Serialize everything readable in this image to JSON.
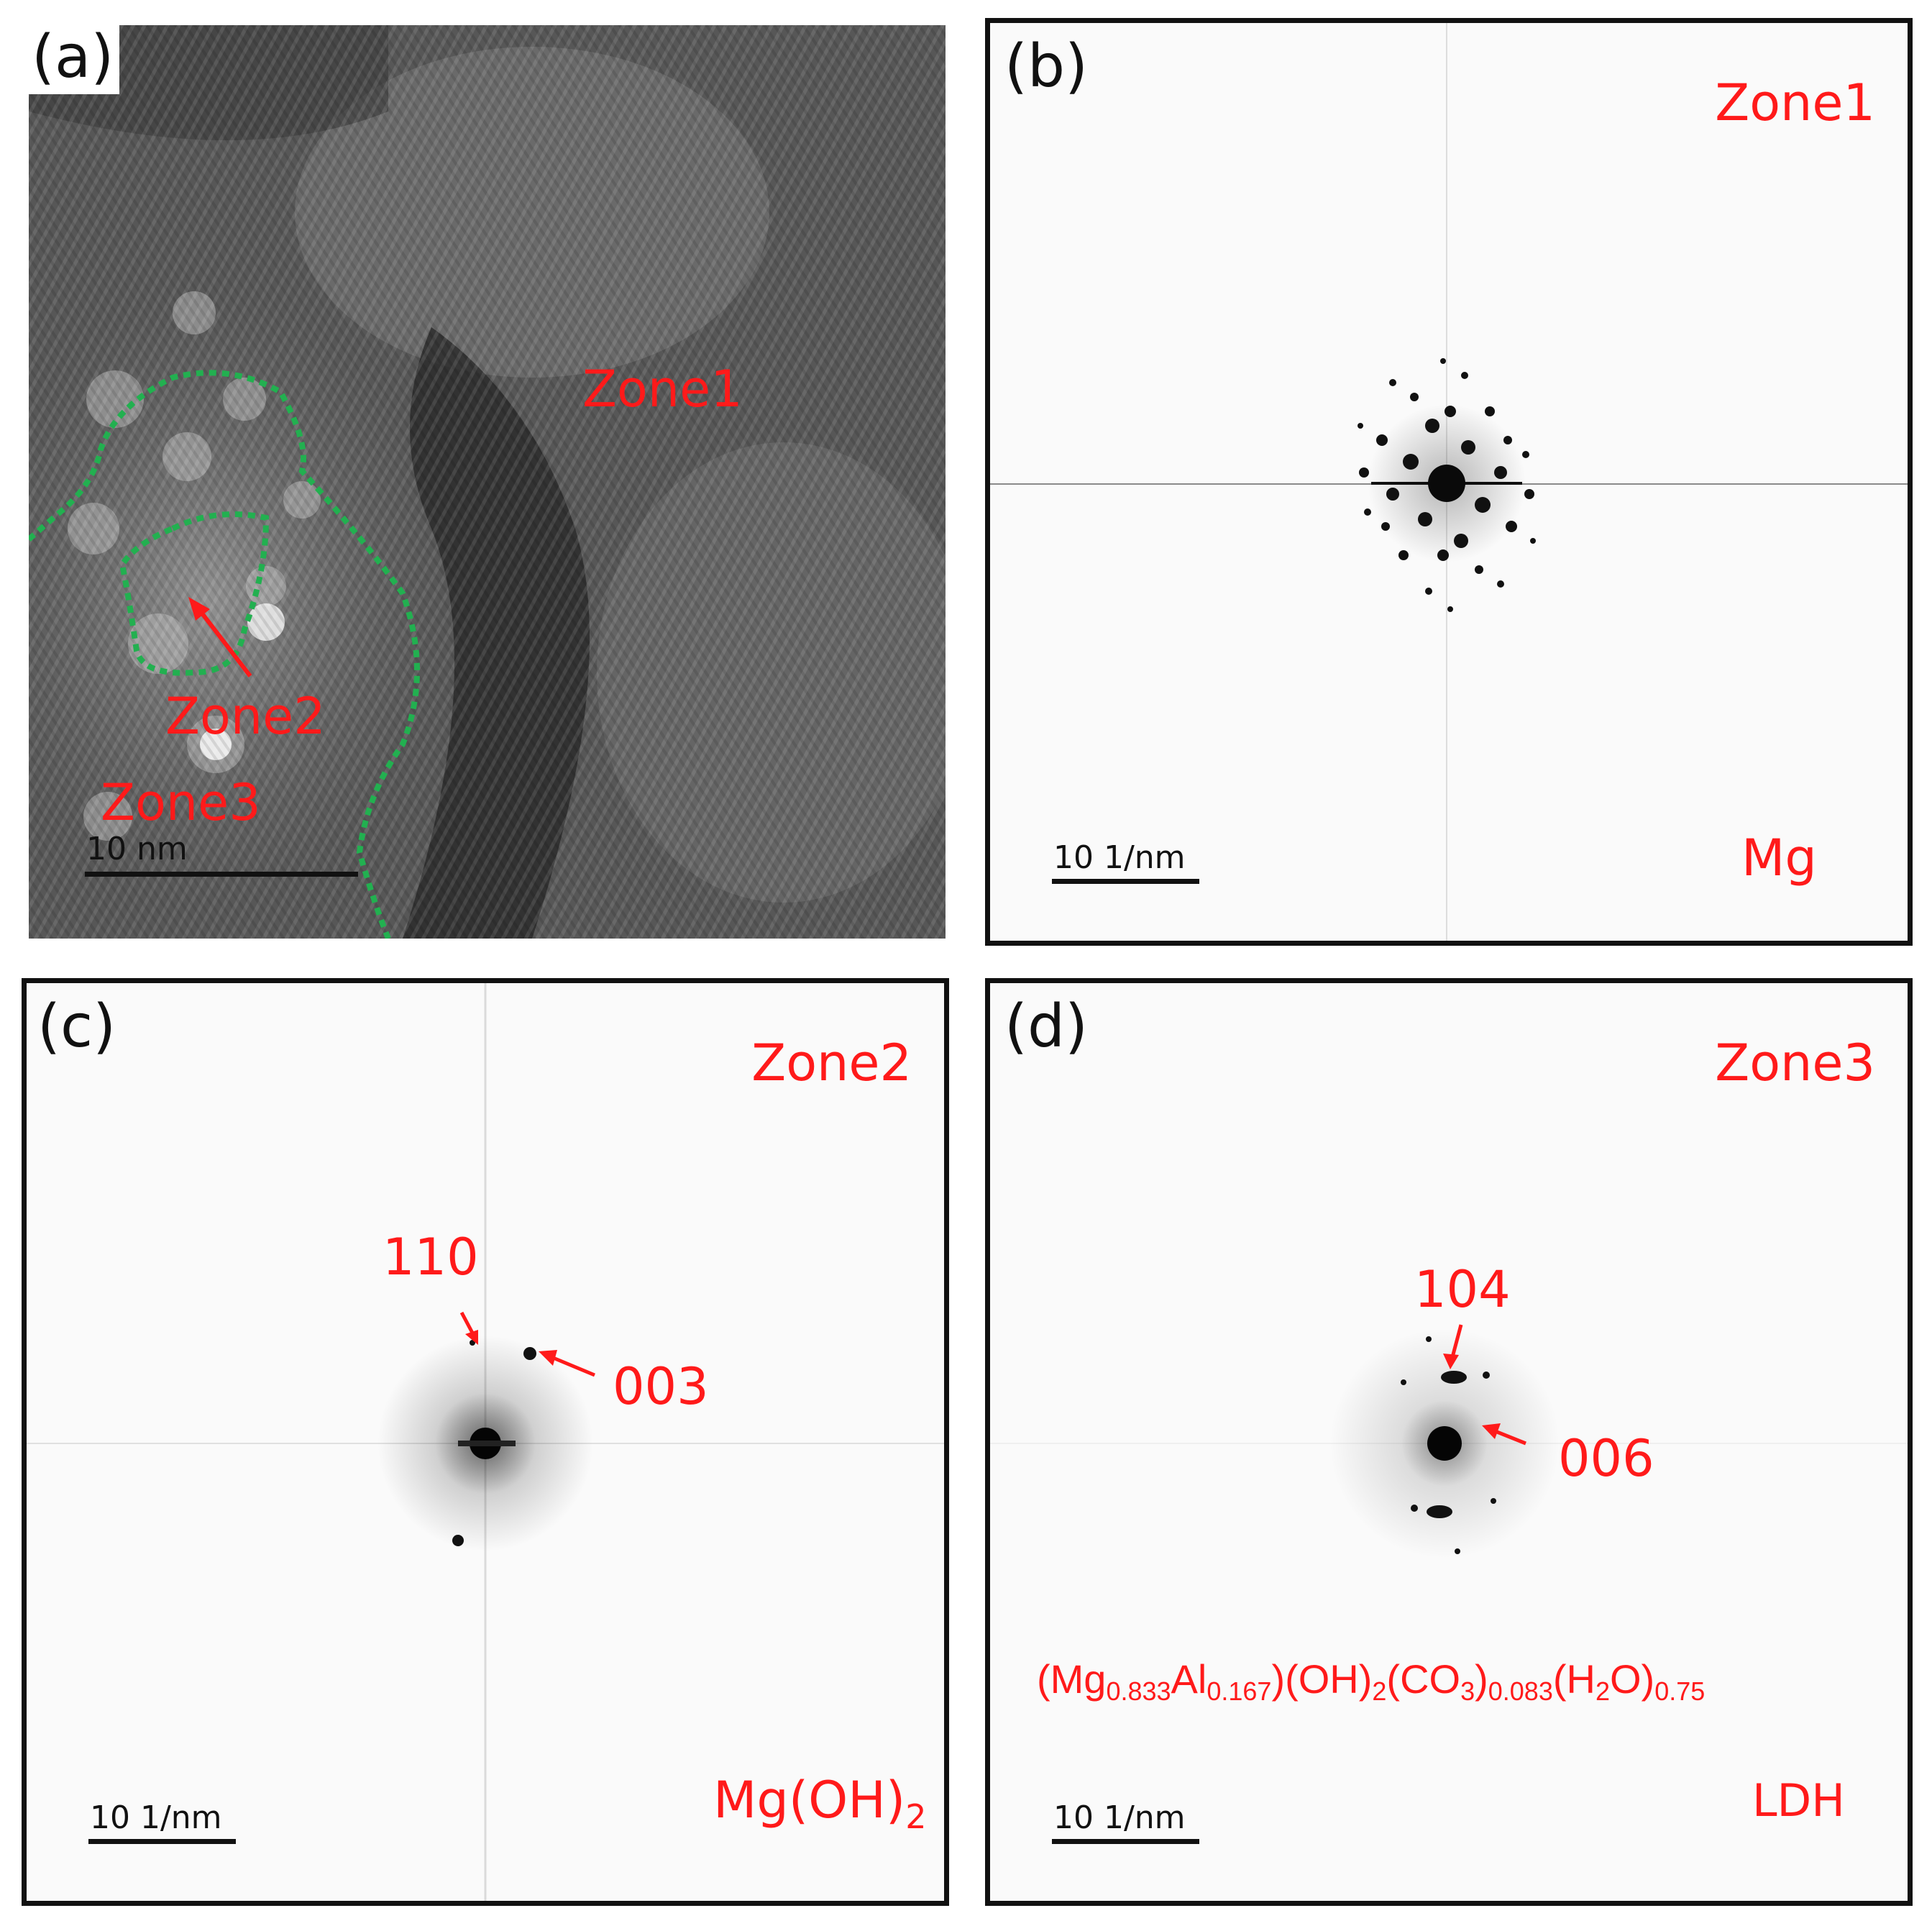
{
  "colors": {
    "annotation": "#ff1a1a",
    "boundary": "#22b050",
    "frame": "#111111",
    "fft_background": "#fafafa"
  },
  "panels": {
    "a": {
      "label": "(a)",
      "zone1": "Zone1",
      "zone2": "Zone2",
      "zone3": "Zone3",
      "scale": "10 nm"
    },
    "b": {
      "label": "(b)",
      "zone": "Zone1",
      "phase": "Mg",
      "scale": "10 1/nm"
    },
    "c": {
      "label": "(c)",
      "zone": "Zone2",
      "phase_main": "Mg(OH)",
      "phase_sub": "2",
      "spot_1": "110",
      "spot_2": "003",
      "scale": "10 1/nm"
    },
    "d": {
      "label": "(d)",
      "zone": "Zone3",
      "phase": "LDH",
      "spot_1": "104",
      "spot_2": "006",
      "scale": "10 1/nm",
      "formula": {
        "p1": "(Mg",
        "s1": "0.833",
        "p2": "Al",
        "s2": "0.167",
        "p3": ")(OH)",
        "s3": "2",
        "p4": "(CO",
        "s4": "3",
        "p5": ")",
        "s5": "0.083",
        "p6": "(H",
        "s6": "2",
        "p7": "O)",
        "s7": "0.75"
      }
    }
  }
}
